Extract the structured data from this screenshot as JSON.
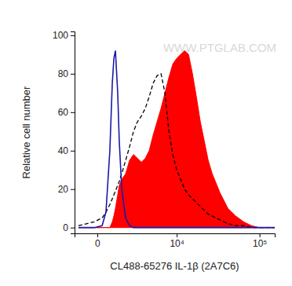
{
  "chart_data": {
    "type": "line",
    "x_label": "CL488-65276 IL-1β (2A7C6)",
    "y_label": "Relative cell number",
    "annotation": "WWW.PTGLAB.COM",
    "log": "x",
    "xlim": [
      -1150,
      150000
    ],
    "ylim": [
      -3,
      102
    ],
    "xticks": [
      0,
      {
        "value": 10000,
        "label": "10⁴"
      },
      {
        "value": 100000,
        "label": "10⁵"
      }
    ],
    "yticks": [
      0,
      20,
      40,
      60,
      80,
      100
    ],
    "x": [
      -900,
      -470,
      -120,
      190,
      360,
      550,
      680,
      770,
      860,
      1000,
      1100,
      1270,
      1560,
      1880,
      2240,
      2640,
      3080,
      3570,
      4110,
      4710,
      5380,
      6130,
      6950,
      7860,
      8870,
      10000,
      11240,
      12630,
      14170,
      15860,
      17750,
      19850,
      22180,
      24750,
      27650,
      34340,
      42570,
      52700,
      65140,
      80470,
      99550,
      122800,
      150000
    ],
    "series": [
      {
        "type": "area",
        "color": "#ff0000",
        "line_style": "solid",
        "values": [
          0,
          0,
          0,
          0,
          0,
          0,
          3,
          6,
          10,
          17,
          22,
          25,
          28,
          35,
          38,
          36,
          34,
          36,
          40,
          48,
          55,
          62,
          70,
          78,
          85,
          88,
          90,
          92,
          90,
          80,
          68,
          55,
          45,
          35,
          28,
          18,
          10,
          6,
          3,
          1,
          0,
          0,
          0
        ]
      },
      {
        "type": "line",
        "color": "#000000",
        "line_style": "dashed",
        "values": [
          1,
          2,
          3,
          5,
          8,
          12,
          15,
          17,
          19,
          22,
          24,
          28,
          35,
          42,
          50,
          55,
          58,
          62,
          68,
          75,
          79,
          80,
          70,
          50,
          38,
          30,
          25,
          20,
          17,
          15,
          13,
          11,
          9,
          7,
          6,
          4,
          2,
          1,
          1,
          0,
          0,
          0,
          0
        ]
      },
      {
        "type": "line",
        "color": "#1a1aa6",
        "line_style": "solid",
        "values": [
          0,
          0,
          0,
          1,
          8,
          40,
          75,
          88,
          92,
          70,
          45,
          20,
          5,
          1,
          0,
          0,
          0,
          0,
          0,
          0,
          0,
          0,
          0,
          0,
          0,
          0,
          0,
          0,
          0,
          0,
          0,
          0,
          0,
          0,
          0,
          0,
          0,
          0,
          0,
          0,
          0,
          0,
          0
        ]
      }
    ]
  }
}
